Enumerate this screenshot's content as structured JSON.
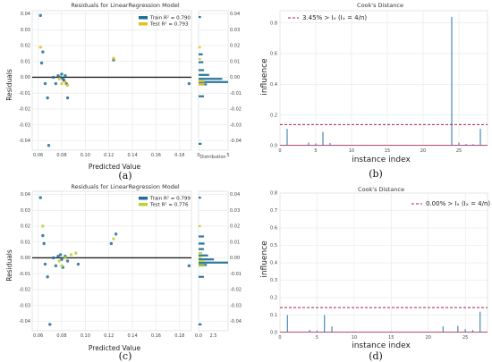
{
  "colors": {
    "train": "#1f6f96",
    "test_a": "#e3c01c",
    "test_c": "#b9d430",
    "cook_stem": "#3a7fb0",
    "threshold": "#b2184e",
    "grid": "#e3e6ea",
    "zero_line": "#222222"
  },
  "chart_data": [
    {
      "id": "a",
      "type": "scatter",
      "caption": "(a)",
      "title": "Residuals for LinearRegression Model",
      "xlabel": "Predicted Value",
      "ylabel": "Residuals",
      "hist_xlabel": "Distribution",
      "xlim": [
        0.055,
        0.19
      ],
      "ylim": [
        -0.046,
        0.042
      ],
      "xticks": [
        "0.06",
        "0.08",
        "0.10",
        "0.12",
        "0.14",
        "0.16",
        "0.18"
      ],
      "yticks": [
        "0.04",
        "0.03",
        "0.02",
        "0.01",
        "0.00",
        "-0.01",
        "-0.02",
        "-0.03",
        "-0.04"
      ],
      "hist_xticks": [
        "0",
        "5"
      ],
      "hist_xlim": [
        0,
        5
      ],
      "legend": [
        "Train R² = 0.790",
        "Test R² = 0.793"
      ],
      "series": [
        {
          "name": "Train R² = 0.790",
          "points": [
            [
              0.062,
              0.039
            ],
            [
              0.064,
              0.016
            ],
            [
              0.063,
              0.009
            ],
            [
              0.066,
              -0.004
            ],
            [
              0.068,
              -0.013
            ],
            [
              0.069,
              -0.043
            ],
            [
              0.073,
              0.0
            ],
            [
              0.075,
              -0.004
            ],
            [
              0.077,
              0.001
            ],
            [
              0.079,
              0.0
            ],
            [
              0.08,
              0.002
            ],
            [
              0.081,
              -0.001
            ],
            [
              0.082,
              -0.002
            ],
            [
              0.083,
              0.001
            ],
            [
              0.084,
              -0.004
            ],
            [
              0.085,
              -0.013
            ],
            [
              0.124,
              0.011
            ],
            [
              0.188,
              -0.004
            ]
          ]
        },
        {
          "name": "Test R² = 0.793",
          "points": [
            [
              0.062,
              0.019
            ],
            [
              0.078,
              -0.001
            ],
            [
              0.08,
              -0.004
            ],
            [
              0.083,
              -0.003
            ],
            [
              0.085,
              -0.005
            ],
            [
              0.124,
              0.012
            ]
          ]
        }
      ],
      "hist_train": [
        [
          0.038,
          0.4
        ],
        [
          0.0145,
          0.7
        ],
        [
          0.0095,
          0.8
        ],
        [
          0.0045,
          0.9
        ],
        [
          0.0015,
          1.8
        ],
        [
          -0.001,
          4.0
        ],
        [
          -0.003,
          5.0
        ],
        [
          -0.0045,
          1.4
        ],
        [
          -0.012,
          0.9
        ],
        [
          -0.042,
          0.5
        ]
      ],
      "hist_test": [
        [
          0.019,
          0.4
        ],
        [
          0.0115,
          0.4
        ],
        [
          -0.0025,
          1.0
        ],
        [
          -0.0045,
          1.0
        ]
      ]
    },
    {
      "id": "b",
      "type": "bar",
      "caption": "(b)",
      "title": "Cook's Distance",
      "xlabel": "instance index",
      "ylabel": "influence",
      "legend": "3.45% > Iₓ (Iₓ = 4/n)",
      "threshold": 0.138,
      "xlim": [
        0,
        29
      ],
      "ylim": [
        0,
        0.88
      ],
      "xticks": [
        "0",
        "5",
        "10",
        "15",
        "20",
        "25"
      ],
      "yticks": [
        "0.0",
        "0.2",
        "0.4",
        "0.6",
        "0.8"
      ],
      "values": [
        [
          1,
          0.11
        ],
        [
          4,
          0.02
        ],
        [
          5,
          0.015
        ],
        [
          6,
          0.09
        ],
        [
          7,
          0.018
        ],
        [
          9,
          0.004
        ],
        [
          10,
          0.003
        ],
        [
          12,
          0.004
        ],
        [
          15,
          0.003
        ],
        [
          17,
          0.003
        ],
        [
          20,
          0.004
        ],
        [
          22,
          0.004
        ],
        [
          24,
          0.84
        ],
        [
          25,
          0.02
        ],
        [
          26,
          0.012
        ],
        [
          27,
          0.01
        ],
        [
          28,
          0.11
        ]
      ]
    },
    {
      "id": "c",
      "type": "scatter",
      "caption": "(c)",
      "title": "Residuals for LinearRegression Model",
      "xlabel": "Predicted Value",
      "ylabel": "Residuals",
      "hist_xlabel": "",
      "xlim": [
        0.055,
        0.19
      ],
      "ylim": [
        -0.046,
        0.042
      ],
      "xticks": [
        "0.06",
        "0.08",
        "0.10",
        "0.12",
        "0.14",
        "0.16",
        "0.18"
      ],
      "yticks": [
        "0.04",
        "0.03",
        "0.02",
        "0.01",
        "0.00",
        "-0.01",
        "-0.02",
        "-0.03",
        "-0.04"
      ],
      "hist_xticks": [
        "0.0",
        "2.5"
      ],
      "hist_xlim": [
        0,
        5
      ],
      "legend": [
        "Train R² = 0.799",
        "Test R² = 0.776"
      ],
      "series": [
        {
          "name": "Train R² = 0.799",
          "points": [
            [
              0.062,
              0.038
            ],
            [
              0.064,
              0.014
            ],
            [
              0.065,
              0.009
            ],
            [
              0.066,
              -0.004
            ],
            [
              0.068,
              -0.012
            ],
            [
              0.07,
              -0.042
            ],
            [
              0.073,
              0.0
            ],
            [
              0.075,
              -0.005
            ],
            [
              0.077,
              0.001
            ],
            [
              0.079,
              0.002
            ],
            [
              0.08,
              -0.001
            ],
            [
              0.081,
              -0.006
            ],
            [
              0.083,
              0.001
            ],
            [
              0.085,
              -0.002
            ],
            [
              0.094,
              -0.004
            ],
            [
              0.122,
              0.009
            ],
            [
              0.126,
              0.015
            ],
            [
              0.188,
              -0.005
            ]
          ]
        },
        {
          "name": "Test R² = 0.776",
          "points": [
            [
              0.064,
              0.02
            ],
            [
              0.078,
              -0.002
            ],
            [
              0.08,
              -0.005
            ],
            [
              0.083,
              0.0
            ],
            [
              0.088,
              0.002
            ],
            [
              0.092,
              0.003
            ],
            [
              0.124,
              0.012
            ]
          ]
        }
      ],
      "hist_train": [
        [
          0.038,
          0.4
        ],
        [
          0.0135,
          0.9
        ],
        [
          0.009,
          1.0
        ],
        [
          0.0055,
          0.9
        ],
        [
          0.0015,
          1.6
        ],
        [
          -0.001,
          2.6
        ],
        [
          -0.003,
          5.0
        ],
        [
          -0.0045,
          1.4
        ],
        [
          -0.012,
          0.9
        ],
        [
          -0.042,
          0.5
        ]
      ],
      "hist_test": [
        [
          0.02,
          0.4
        ],
        [
          0.003,
          0.6
        ],
        [
          0.0005,
          0.5
        ],
        [
          -0.002,
          1.0
        ],
        [
          -0.005,
          1.0
        ]
      ]
    },
    {
      "id": "d",
      "type": "bar",
      "caption": "(d)",
      "title": "Cook's Distance",
      "xlabel": "instance index",
      "ylabel": "influence",
      "legend": "0.00% > Iₓ (Iₓ = 4/n)",
      "threshold": 0.143,
      "xlim": [
        0,
        28
      ],
      "ylim": [
        0,
        0.8
      ],
      "xticks": [
        "0",
        "5",
        "10",
        "15",
        "20",
        "25"
      ],
      "yticks": [
        "0.0",
        "0.1",
        "0.2",
        "0.3",
        "0.4",
        "0.5",
        "0.6",
        "0.7",
        "0.8"
      ],
      "values": [
        [
          1,
          0.1
        ],
        [
          4,
          0.015
        ],
        [
          5,
          0.012
        ],
        [
          6,
          0.1
        ],
        [
          7,
          0.035
        ],
        [
          9,
          0.004
        ],
        [
          10,
          0.003
        ],
        [
          12,
          0.003
        ],
        [
          15,
          0.003
        ],
        [
          17,
          0.004
        ],
        [
          20,
          0.004
        ],
        [
          22,
          0.035
        ],
        [
          23,
          0.005
        ],
        [
          24,
          0.038
        ],
        [
          25,
          0.02
        ],
        [
          26,
          0.014
        ],
        [
          27,
          0.12
        ]
      ]
    }
  ]
}
